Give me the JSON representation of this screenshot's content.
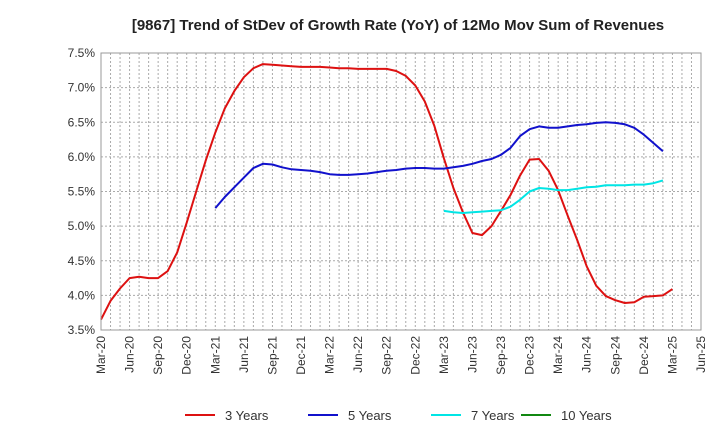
{
  "chart_data": {
    "type": "line",
    "title": "[9867]  Trend of StDev of Growth Rate (YoY) of 12Mo Mov Sum of Revenues",
    "xlabel": "",
    "ylabel": "",
    "ylim": [
      3.5,
      7.5
    ],
    "y_ticks": [
      "3.5%",
      "4.0%",
      "4.5%",
      "5.0%",
      "5.5%",
      "6.0%",
      "6.5%",
      "7.0%",
      "7.5%"
    ],
    "x_ticks": [
      "Mar-20",
      "Jun-20",
      "Sep-20",
      "Dec-20",
      "Mar-21",
      "Jun-21",
      "Sep-21",
      "Dec-21",
      "Mar-22",
      "Jun-22",
      "Sep-22",
      "Dec-22",
      "Mar-23",
      "Jun-23",
      "Sep-23",
      "Dec-23",
      "Mar-24",
      "Jun-24",
      "Sep-24",
      "Dec-24",
      "Mar-25",
      "Jun-25"
    ],
    "x_index_note": "x = months since Mar-20",
    "grid": true,
    "legend_position": "bottom",
    "series": [
      {
        "name": "3 Years",
        "color": "#dd1111",
        "x": [
          0,
          1,
          2,
          3,
          4,
          5,
          6,
          7,
          8,
          9,
          10,
          11,
          12,
          13,
          14,
          15,
          16,
          17,
          18,
          19,
          20,
          21,
          22,
          23,
          24,
          25,
          26,
          27,
          28,
          29,
          30,
          31,
          32,
          33,
          34,
          35,
          36,
          37,
          38,
          39,
          40,
          41,
          42,
          43,
          44,
          45,
          46,
          47,
          48,
          49,
          50,
          51,
          52,
          53,
          54,
          55,
          56,
          57,
          58,
          59,
          60
        ],
        "values": [
          3.65,
          3.92,
          4.1,
          4.25,
          4.27,
          4.25,
          4.25,
          4.35,
          4.62,
          5.05,
          5.5,
          5.95,
          6.35,
          6.7,
          6.95,
          7.15,
          7.28,
          7.34,
          7.33,
          7.32,
          7.31,
          7.3,
          7.3,
          7.3,
          7.29,
          7.28,
          7.28,
          7.27,
          7.27,
          7.27,
          7.27,
          7.24,
          7.17,
          7.03,
          6.8,
          6.45,
          5.98,
          5.55,
          5.2,
          4.9,
          4.87,
          5.0,
          5.22,
          5.45,
          5.73,
          5.96,
          5.97,
          5.8,
          5.52,
          5.15,
          4.8,
          4.42,
          4.14,
          3.99,
          3.93,
          3.89,
          3.9,
          3.98,
          3.99,
          4.0,
          4.09
        ]
      },
      {
        "name": "5 Years",
        "color": "#1111cc",
        "x": [
          12,
          13,
          14,
          15,
          16,
          17,
          18,
          19,
          20,
          21,
          22,
          23,
          24,
          25,
          26,
          27,
          28,
          29,
          30,
          31,
          32,
          33,
          34,
          35,
          36,
          37,
          38,
          39,
          40,
          41,
          42,
          43,
          44,
          45,
          46,
          47,
          48,
          49,
          50,
          51,
          52,
          53,
          54,
          55,
          56,
          57,
          58,
          59,
          60
        ],
        "values": [
          5.26,
          5.42,
          5.56,
          5.7,
          5.84,
          5.9,
          5.89,
          5.85,
          5.82,
          5.81,
          5.8,
          5.78,
          5.75,
          5.74,
          5.74,
          5.75,
          5.76,
          5.78,
          5.8,
          5.81,
          5.83,
          5.84,
          5.84,
          5.83,
          5.83,
          5.85,
          5.87,
          5.9,
          5.94,
          5.97,
          6.03,
          6.13,
          6.3,
          6.4,
          6.44,
          6.42,
          6.42,
          6.44,
          6.46,
          6.47,
          6.49,
          6.5,
          6.49,
          6.47,
          6.42,
          6.32,
          6.2,
          6.08,
          null
        ]
      },
      {
        "name": "7 Years",
        "color": "#00e5e5",
        "x": [
          36,
          37,
          38,
          39,
          40,
          41,
          42,
          43,
          44,
          45,
          46,
          47,
          48,
          49,
          50,
          51,
          52,
          53,
          54,
          55,
          56,
          57,
          58,
          59,
          60
        ],
        "values": [
          5.22,
          5.2,
          5.19,
          5.2,
          5.21,
          5.22,
          5.23,
          5.28,
          5.38,
          5.5,
          5.55,
          5.54,
          5.52,
          5.52,
          5.54,
          5.56,
          5.57,
          5.59,
          5.59,
          5.59,
          5.6,
          5.6,
          5.62,
          5.66,
          null
        ]
      },
      {
        "name": "10 Years",
        "color": "#118811",
        "x": [],
        "values": []
      }
    ]
  }
}
